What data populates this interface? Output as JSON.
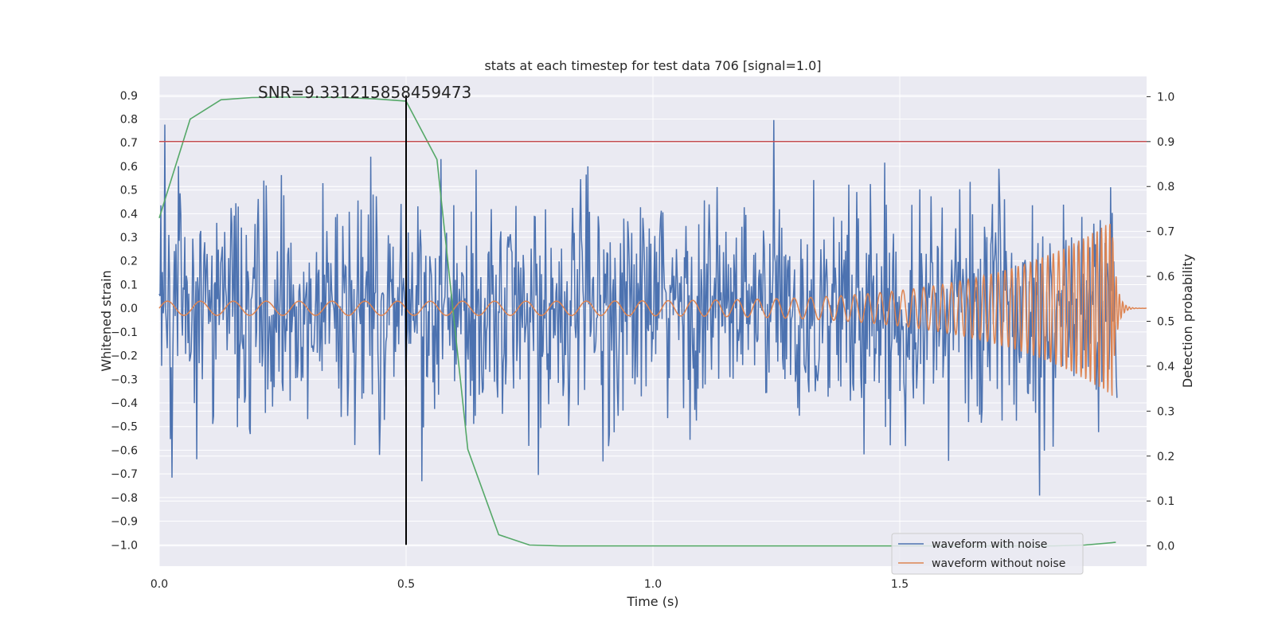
{
  "chart_data": {
    "type": "line",
    "title": "stats at each timestep for test data 706 [signal=1.0]",
    "xlabel": "Time (s)",
    "ylabel": "Whitened strain",
    "y2label": "Detection probability",
    "annotation": "SNR=9.331215858459473",
    "xlim": [
      0.0,
      2.0
    ],
    "ylim": [
      -1.09,
      0.98
    ],
    "y2lim": [
      -0.045,
      1.045
    ],
    "x_ticks": [
      "0.0",
      "0.5",
      "1.0",
      "1.5"
    ],
    "x_tick_values": [
      0.0,
      0.5,
      1.0,
      1.5
    ],
    "y_ticks": [
      "0.9",
      "0.8",
      "0.7",
      "0.6",
      "0.5",
      "0.4",
      "0.3",
      "0.2",
      "0.1",
      "0.0",
      "−0.1",
      "−0.2",
      "−0.3",
      "−0.4",
      "−0.5",
      "−0.6",
      "−0.7",
      "−0.8",
      "−0.9",
      "−1.0"
    ],
    "y_tick_values": [
      0.9,
      0.8,
      0.7,
      0.6,
      0.5,
      0.4,
      0.3,
      0.2,
      0.1,
      0.0,
      -0.1,
      -0.2,
      -0.3,
      -0.4,
      -0.5,
      -0.6,
      -0.7,
      -0.8,
      -0.9,
      -1.0
    ],
    "y2_ticks": [
      "1.0",
      "0.9",
      "0.8",
      "0.7",
      "0.6",
      "0.5",
      "0.4",
      "0.3",
      "0.2",
      "0.1",
      "0.0"
    ],
    "y2_tick_values": [
      1.0,
      0.9,
      0.8,
      0.7,
      0.6,
      0.5,
      0.4,
      0.3,
      0.2,
      0.1,
      0.0
    ],
    "threshold": 0.9,
    "marker_time": 0.5,
    "grid": true,
    "legend_position": "lower-right",
    "series": [
      {
        "name": "waveform with noise",
        "color": "#4c72b0",
        "description": "whitened strain, noisy, roughly within -1.0 to 0.9"
      },
      {
        "name": "waveform without noise",
        "color": "#dd8452",
        "chirp": {
          "amplitude_start": 0.03,
          "amplitude_end": 0.37,
          "freq_start_hz": 15,
          "freq_end_hz": 120,
          "merger_time": 1.93
        }
      },
      {
        "name": "",
        "color": "#55a868",
        "axis": "right",
        "x": [
          0.0,
          0.0625,
          0.125,
          0.1875,
          0.25,
          0.3125,
          0.375,
          0.4375,
          0.5,
          0.5625,
          0.625,
          0.6875,
          0.75,
          0.8125,
          0.875,
          0.9375,
          1.0,
          1.0625,
          1.125,
          1.1875,
          1.25,
          1.3125,
          1.375,
          1.4375,
          1.5,
          1.5625,
          1.625,
          1.6875,
          1.75,
          1.8125,
          1.875,
          1.9375
        ],
        "values": [
          0.73,
          0.95,
          0.993,
          0.998,
          0.999,
          0.999,
          0.998,
          0.995,
          0.99,
          0.86,
          0.215,
          0.025,
          0.002,
          0.0,
          0.0,
          0.0,
          0.0,
          0.0,
          0.0,
          0.0,
          0.0,
          0.0,
          0.0,
          0.0,
          0.0,
          0.0,
          0.0,
          0.0,
          0.0,
          0.0,
          0.002,
          0.008
        ]
      }
    ],
    "colors": {
      "background": "#eaeaf2",
      "grid": "#ffffff",
      "threshold": "#c44e52",
      "marker": "#000000"
    }
  }
}
